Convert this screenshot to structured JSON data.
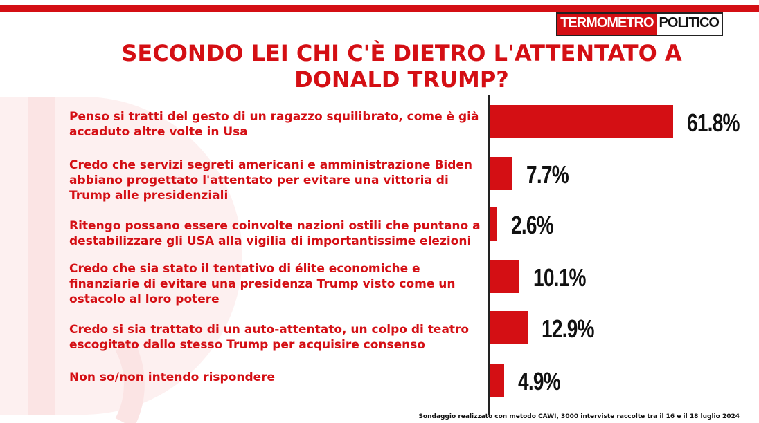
{
  "brand": {
    "part1": "TERMOMETRO",
    "part2": "POLITICO",
    "accent_color": "#d40f14"
  },
  "chart_data": {
    "type": "bar",
    "orientation": "horizontal",
    "title": "SECONDO LEI CHI C'È DIETRO L'ATTENTATO A DONALD TRUMP?",
    "categories": [
      "Penso si tratti del gesto di un ragazzo squilibrato, come è già accaduto altre volte in Usa",
      "Credo che servizi segreti americani e amministrazione Biden abbiano progettato l'attentato per evitare una vittoria di Trump alle presidenziali",
      "Ritengo possano essere coinvolte nazioni ostili che puntano a destabilizzare gli USA alla vigilia di importantissime elezioni",
      "Credo che sia stato il tentativo di élite economiche e finanziarie di evitare una presidenza Trump visto come un ostacolo al loro potere",
      "Credo si sia trattato di un auto-attentato, un colpo di teatro escogitato dallo stesso Trump per acquisire consenso",
      "Non so/non intendo rispondere"
    ],
    "values": [
      61.8,
      7.7,
      2.6,
      10.1,
      12.9,
      4.9
    ],
    "value_labels": [
      "61.8%",
      "7.7%",
      "2.6%",
      "10.1%",
      "12.9%",
      "4.9%"
    ],
    "xlim": [
      0,
      61.8
    ],
    "grid": false,
    "legend": "none",
    "bar_color": "#d40f14"
  },
  "footnote": "Sondaggio realizzato con metodo CAWI, 3000 interviste raccolte tra il 16 e il 18 luglio 2024"
}
